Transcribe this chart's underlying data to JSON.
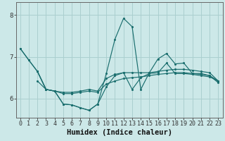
{
  "background_color": "#cce8e8",
  "grid_color": "#aacfcf",
  "line_color": "#1a6e6e",
  "xlabel": "Humidex (Indice chaleur)",
  "xlabel_fontsize": 7.5,
  "yticks": [
    6,
    7,
    8
  ],
  "xlim": [
    -0.5,
    23.5
  ],
  "ylim": [
    5.55,
    8.3
  ],
  "tick_fontsize": 6.0,
  "line1_x": [
    0,
    1,
    2,
    3,
    4,
    5,
    6,
    7,
    8,
    9,
    10,
    11,
    12,
    13,
    14,
    15,
    16,
    17,
    18,
    19,
    20,
    21,
    22,
    23
  ],
  "line1_y": [
    7.2,
    6.92,
    6.65,
    6.22,
    6.18,
    5.87,
    5.85,
    5.78,
    5.72,
    5.87,
    6.6,
    7.42,
    7.92,
    7.72,
    6.22,
    6.62,
    6.95,
    7.08,
    6.83,
    6.85,
    6.6,
    6.6,
    6.55,
    6.42
  ],
  "line2_x": [
    0,
    1,
    2,
    3,
    4,
    5,
    6,
    7,
    8,
    9,
    10,
    11,
    12,
    13,
    14,
    15,
    16,
    17,
    18,
    19,
    20,
    21,
    22,
    23
  ],
  "line2_y": [
    7.2,
    6.92,
    6.65,
    6.22,
    6.18,
    5.87,
    5.85,
    5.78,
    5.72,
    5.87,
    6.28,
    6.55,
    6.62,
    6.22,
    6.5,
    6.6,
    6.62,
    6.85,
    6.6,
    6.6,
    6.58,
    6.55,
    6.52,
    6.42
  ],
  "line3_x": [
    2,
    3,
    4,
    5,
    6,
    7,
    8,
    9,
    10,
    11,
    12,
    13,
    14,
    15,
    16,
    17,
    18,
    19,
    20,
    21,
    22,
    23
  ],
  "line3_y": [
    6.65,
    6.22,
    6.18,
    6.15,
    6.15,
    6.18,
    6.22,
    6.18,
    6.48,
    6.58,
    6.62,
    6.62,
    6.62,
    6.62,
    6.65,
    6.68,
    6.7,
    6.7,
    6.68,
    6.65,
    6.62,
    6.42
  ],
  "line4_x": [
    2,
    3,
    4,
    5,
    6,
    7,
    8,
    9,
    10,
    11,
    12,
    13,
    14,
    15,
    16,
    17,
    18,
    19,
    20,
    21,
    22,
    23
  ],
  "line4_y": [
    6.42,
    6.22,
    6.18,
    6.12,
    6.12,
    6.15,
    6.18,
    6.15,
    6.35,
    6.42,
    6.48,
    6.5,
    6.52,
    6.55,
    6.58,
    6.6,
    6.62,
    6.62,
    6.6,
    6.58,
    6.55,
    6.38
  ],
  "xtick_labels": [
    "0",
    "1",
    "2",
    "3",
    "4",
    "5",
    "6",
    "7",
    "8",
    "9",
    "10",
    "11",
    "12",
    "13",
    "14",
    "15",
    "16",
    "17",
    "18",
    "19",
    "20",
    "21",
    "22",
    "23"
  ]
}
